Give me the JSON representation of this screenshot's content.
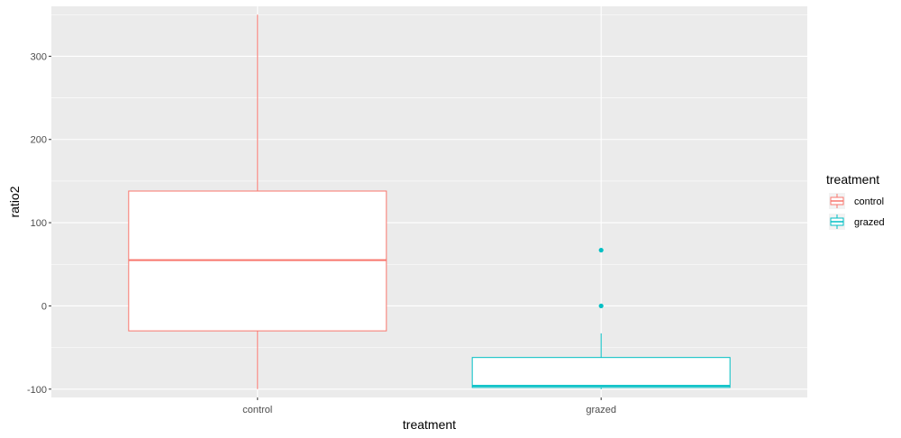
{
  "chart_data": {
    "type": "box",
    "title": "",
    "xlabel": "treatment",
    "ylabel": "ratio2",
    "categories": [
      "control",
      "grazed"
    ],
    "ylim": [
      -110,
      360
    ],
    "yticks": [
      -100,
      0,
      100,
      200,
      300
    ],
    "grid": true,
    "background": "#EBEBEB",
    "legend": {
      "title": "treatment",
      "placement": "right",
      "entries": [
        {
          "label": "control",
          "color": "#F8766D"
        },
        {
          "label": "grazed",
          "color": "#00BFC4"
        }
      ]
    },
    "series": [
      {
        "category": "control",
        "color": "#F8766D",
        "min": -100,
        "q1": -30,
        "median": 55,
        "q3": 138,
        "max": 350,
        "outliers": []
      },
      {
        "category": "grazed",
        "color": "#00BFC4",
        "min": -100,
        "q1": -98,
        "median": -96,
        "q3": -62,
        "max": -33,
        "outliers": [
          0,
          67
        ]
      }
    ]
  }
}
